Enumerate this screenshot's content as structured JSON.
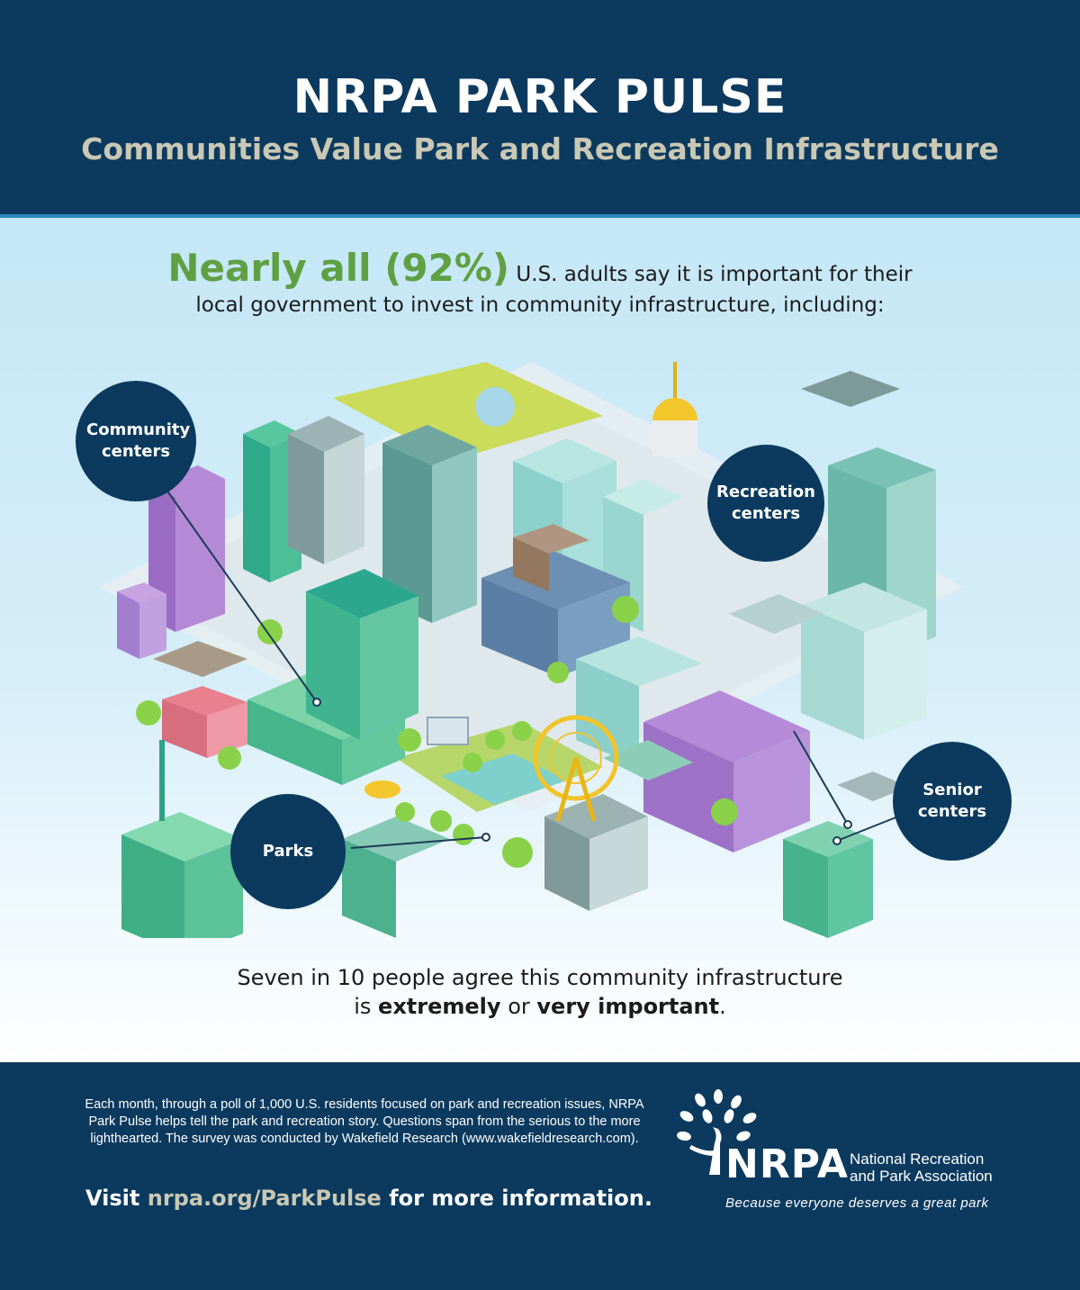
{
  "header": {
    "title": "NRPA PARK PULSE",
    "subtitle": "Communities Value Park and Recreation Infrastructure"
  },
  "stat": {
    "highlight": "Nearly all (92%)",
    "text_line1": "U.S. adults say it is important for their",
    "text_line2": "local government to invest in community infrastructure, including:",
    "percent": 92
  },
  "labels": {
    "community_centers": "Community centers",
    "recreation_centers": "Recreation centers",
    "parks": "Parks",
    "senior_centers": "Senior centers"
  },
  "conclusion": {
    "line1": "Seven in 10 people agree this community infrastructure",
    "line2_prefix": "is",
    "emph1": "extremely",
    "mid": "or",
    "emph2": "very important",
    "end": "."
  },
  "footer": {
    "about": "Each month, through a poll of 1,000 U.S. residents focused on park and recreation issues, NRPA Park Pulse helps tell the park and recreation story. Questions span from the serious to the more lighthearted. The survey was conducted by Wakefield Research (www.wakefieldresearch.com).",
    "visit_prefix": "Visit",
    "visit_link": "nrpa.org/ParkPulse",
    "visit_suffix": "for more information.",
    "logo_word": "NRPA",
    "logo_name_line1": "National Recreation",
    "logo_name_line2": "and Park Association",
    "tagline": "Because everyone deserves a great park"
  },
  "colors": {
    "navy": "#0c3a5e",
    "accent_green": "#5fa043",
    "subtitle_tan": "#c9c8b4",
    "sky": "#c5e7f6"
  },
  "icons": [
    "nrpa-tree-logo-icon",
    "isometric-city-illustration"
  ]
}
